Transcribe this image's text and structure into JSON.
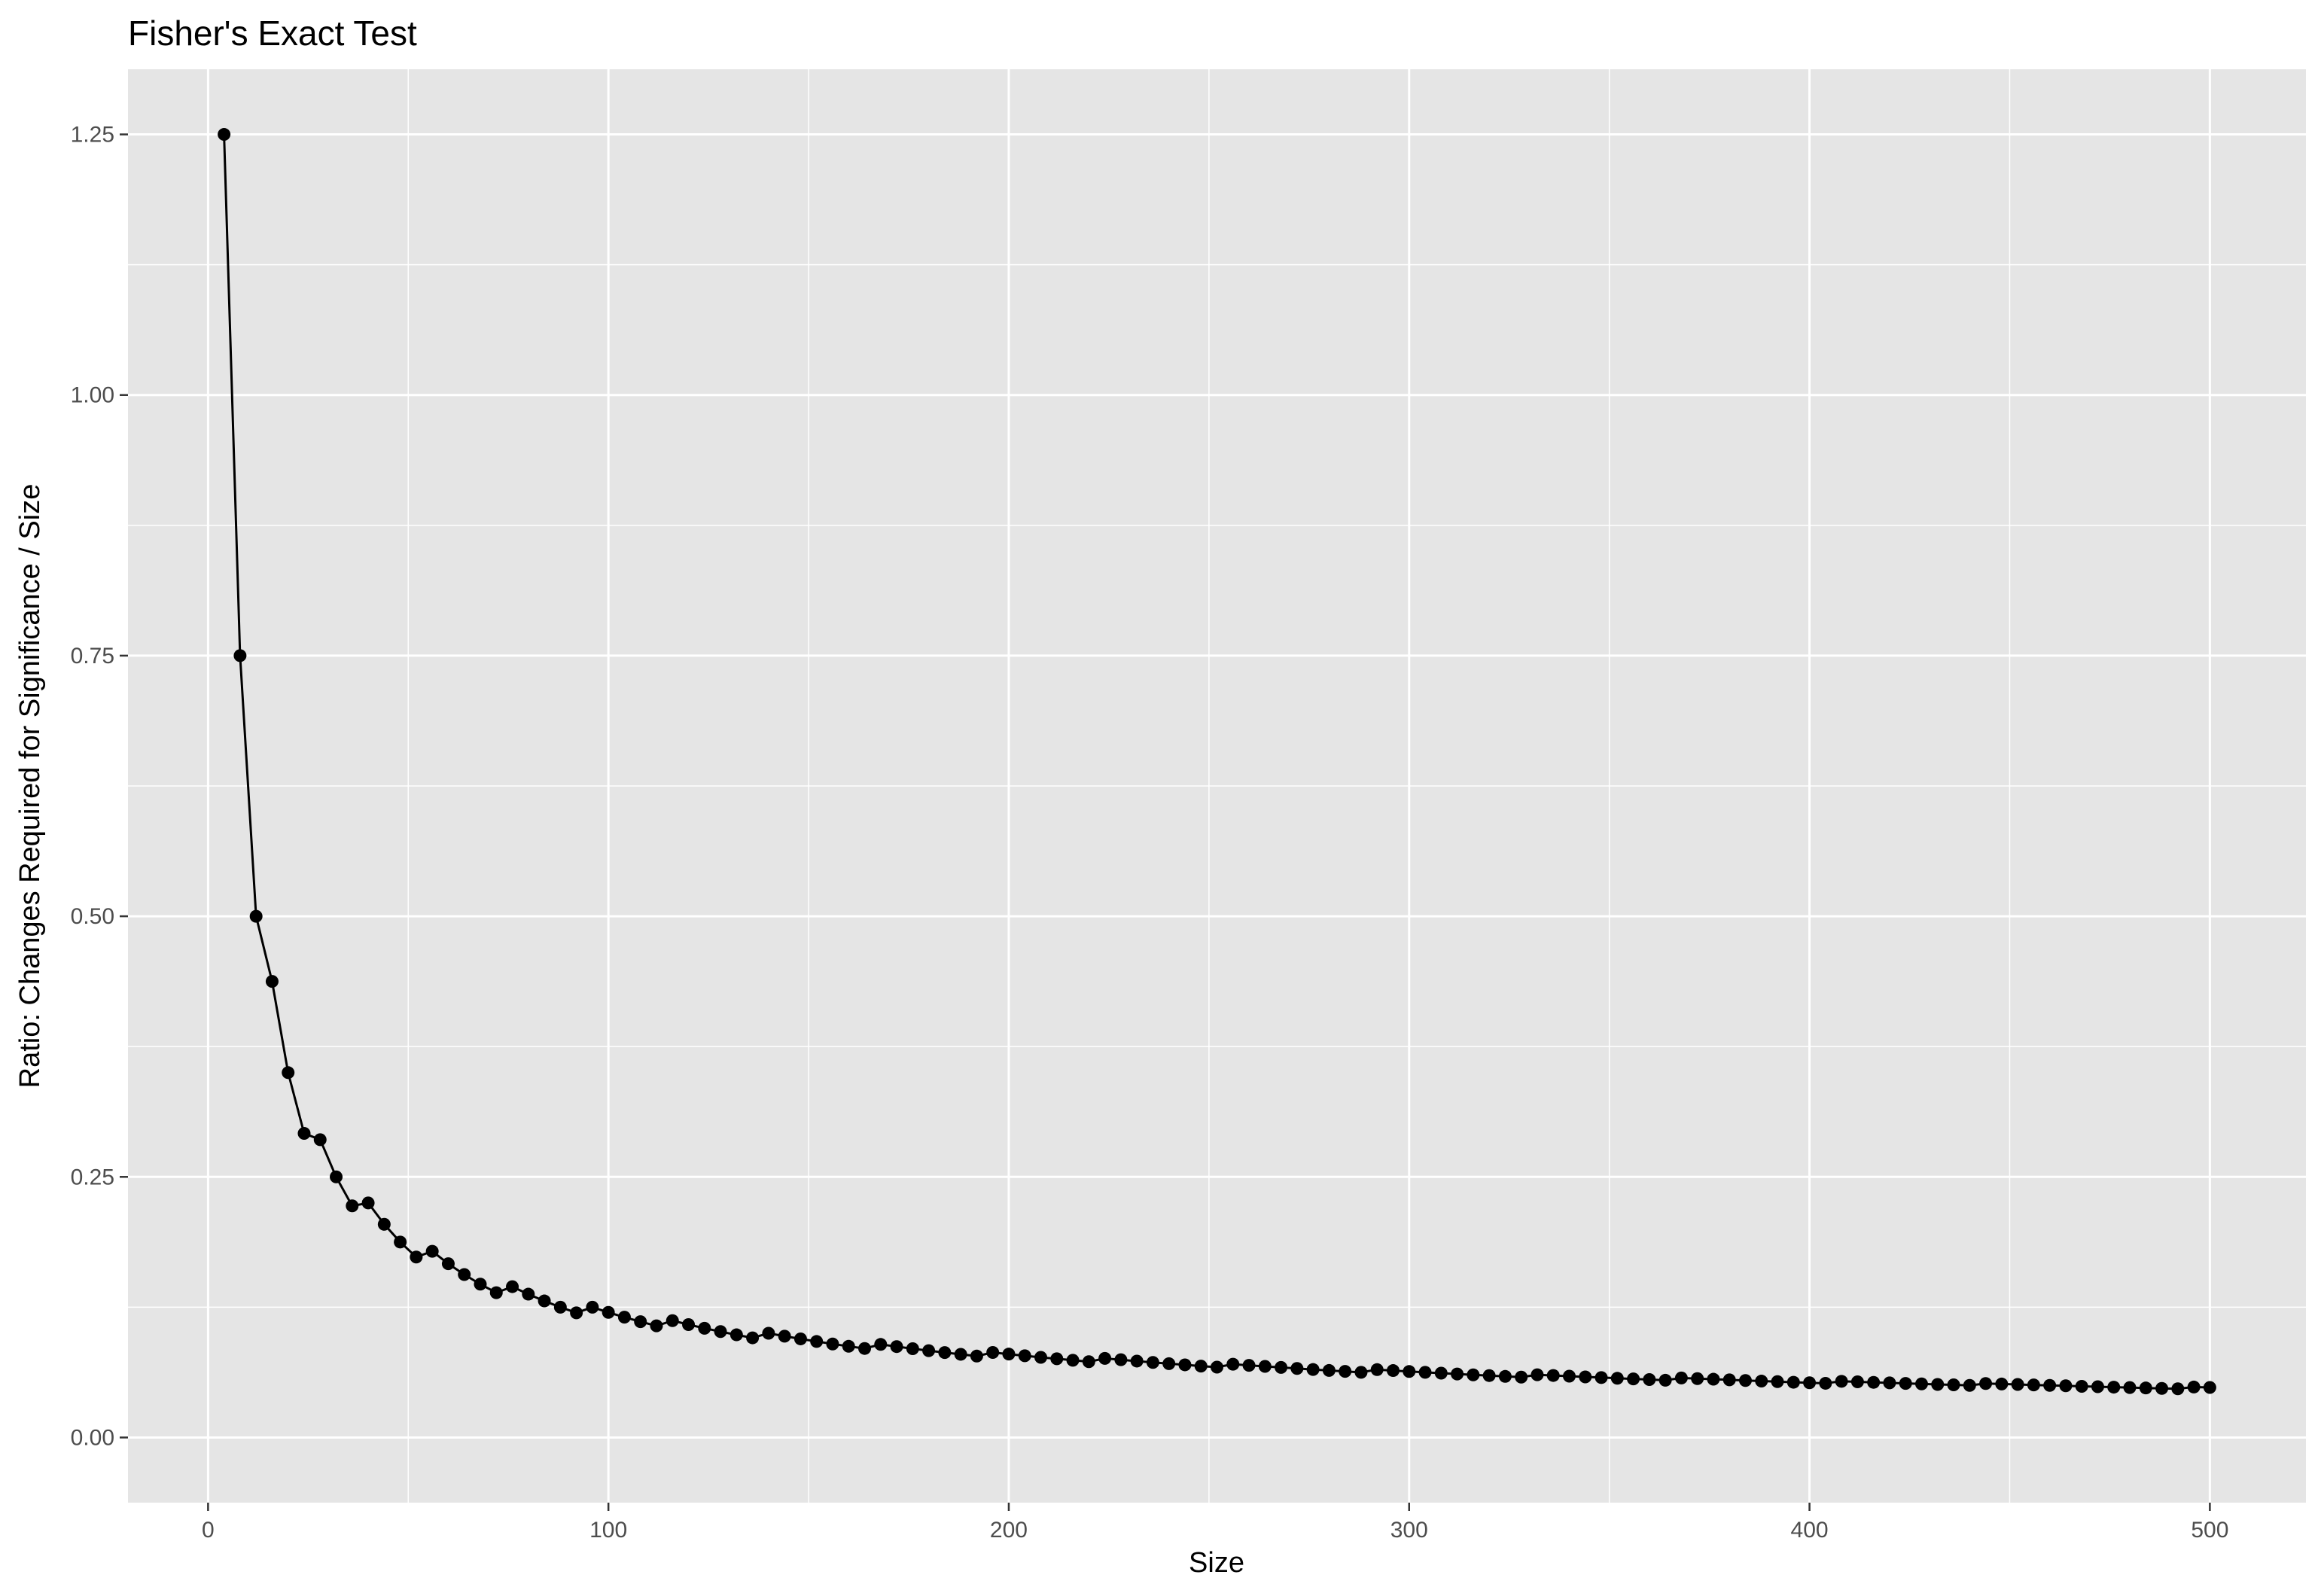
{
  "chart_data": {
    "type": "line",
    "title": "Fisher's Exact Test",
    "xlabel": "Size",
    "ylabel": "Ratio: Changes Required for Significance / Size",
    "xlim": [
      -20,
      524
    ],
    "ylim": [
      -0.0625,
      1.3125
    ],
    "x_ticks": [
      0,
      100,
      200,
      300,
      400,
      500
    ],
    "x_tick_labels": [
      "0",
      "100",
      "200",
      "300",
      "400",
      "500"
    ],
    "y_ticks": [
      0,
      0.25,
      0.5,
      0.75,
      1.0,
      1.25
    ],
    "y_tick_labels": [
      "0.00",
      "0.25",
      "0.50",
      "0.75",
      "1.00",
      "1.25"
    ],
    "grid": true,
    "legend": "none",
    "colors": {
      "panel": "#e5e5e5",
      "grid": "#ffffff",
      "line": "#000000",
      "point": "#000000",
      "tick_text": "#4d4d4d"
    },
    "series": [
      {
        "x": [
          4,
          8,
          12,
          16,
          20,
          24,
          28,
          32,
          36,
          40,
          44,
          48,
          52,
          56,
          60,
          64,
          68,
          72,
          76,
          80,
          84,
          88,
          92,
          96,
          100,
          104,
          108,
          112,
          116,
          120,
          124,
          128,
          132,
          136,
          140,
          144,
          148,
          152,
          156,
          160,
          164,
          168,
          172,
          176,
          180,
          184,
          188,
          192,
          196,
          200,
          204,
          208,
          212,
          216,
          220,
          224,
          228,
          232,
          236,
          240,
          244,
          248,
          252,
          256,
          260,
          264,
          268,
          272,
          276,
          280,
          284,
          288,
          292,
          296,
          300,
          304,
          308,
          312,
          316,
          320,
          324,
          328,
          332,
          336,
          340,
          344,
          348,
          352,
          356,
          360,
          364,
          368,
          372,
          376,
          380,
          384,
          388,
          392,
          396,
          400,
          404,
          408,
          412,
          416,
          420,
          424,
          428,
          432,
          436,
          440,
          444,
          448,
          452,
          456,
          460,
          464,
          468,
          472,
          476,
          480,
          484,
          488,
          492,
          496,
          500
        ],
        "values": [
          1.25,
          0.75,
          0.5,
          0.4375,
          0.35,
          0.2917,
          0.2857,
          0.25,
          0.2222,
          0.225,
          0.2045,
          0.1875,
          0.1731,
          0.1786,
          0.1667,
          0.1563,
          0.1471,
          0.1389,
          0.1447,
          0.1375,
          0.131,
          0.125,
          0.1196,
          0.125,
          0.12,
          0.1154,
          0.1111,
          0.1071,
          0.1121,
          0.1083,
          0.1048,
          0.1016,
          0.0985,
          0.0956,
          0.1,
          0.0972,
          0.0946,
          0.0921,
          0.0897,
          0.0875,
          0.0854,
          0.0893,
          0.0872,
          0.0852,
          0.0833,
          0.0815,
          0.0798,
          0.0781,
          0.0816,
          0.08,
          0.0784,
          0.0769,
          0.0755,
          0.0741,
          0.0727,
          0.0759,
          0.0746,
          0.0733,
          0.072,
          0.0708,
          0.0697,
          0.0685,
          0.0675,
          0.0703,
          0.0692,
          0.0682,
          0.0672,
          0.0662,
          0.0652,
          0.0643,
          0.0634,
          0.0625,
          0.0651,
          0.0642,
          0.0633,
          0.0625,
          0.0617,
          0.0609,
          0.0601,
          0.0594,
          0.0586,
          0.0579,
          0.0602,
          0.0595,
          0.0588,
          0.0581,
          0.0575,
          0.0568,
          0.0562,
          0.0556,
          0.0549,
          0.0571,
          0.0565,
          0.0559,
          0.0553,
          0.0547,
          0.0541,
          0.0536,
          0.053,
          0.0525,
          0.052,
          0.0539,
          0.0534,
          0.0529,
          0.0524,
          0.0519,
          0.0514,
          0.0509,
          0.0505,
          0.05,
          0.0518,
          0.0513,
          0.0509,
          0.0504,
          0.05,
          0.0496,
          0.0491,
          0.0487,
          0.0483,
          0.0479,
          0.0475,
          0.0471,
          0.0467,
          0.0484,
          0.048
        ]
      }
    ]
  }
}
